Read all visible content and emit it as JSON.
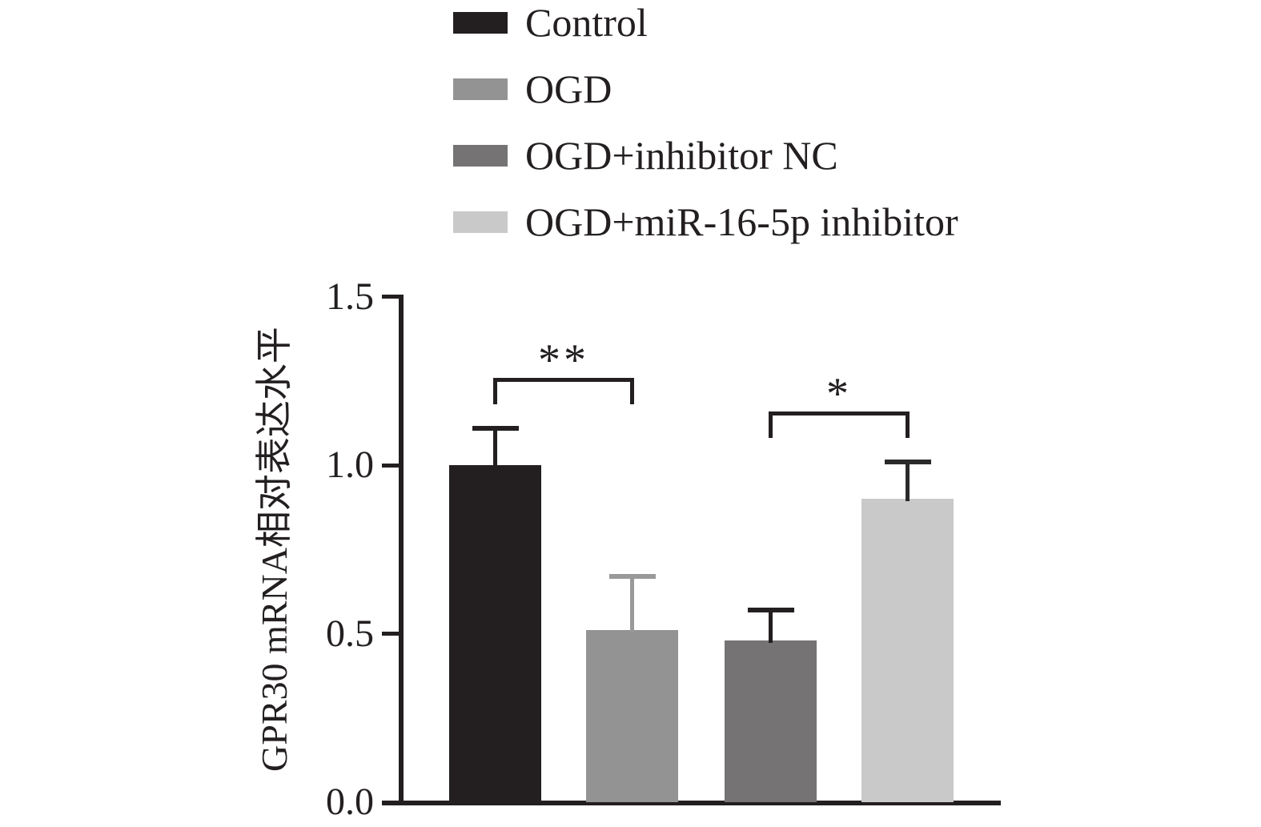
{
  "figure": {
    "background": "#ffffff",
    "text_color": "#231f20",
    "axis_color": "#231f20"
  },
  "legend": {
    "position": "top",
    "items": [
      {
        "label": "Control",
        "color": "#231f20"
      },
      {
        "label": "OGD",
        "color": "#949394"
      },
      {
        "label": "OGD+inhibitor NC",
        "color": "#757374"
      },
      {
        "label": "OGD+miR-16-5p inhibitor",
        "color": "#c9c9c9"
      }
    ]
  },
  "chart_data": {
    "type": "bar",
    "title": "",
    "xlabel": "",
    "ylabel": "GPR30 mRNA相对表达水平",
    "ylim": [
      0,
      1.5
    ],
    "yticks": [
      0.0,
      0.5,
      1.0,
      1.5
    ],
    "ytick_labels": [
      "0.0",
      "0.5",
      "1.0",
      "1.5"
    ],
    "grid": false,
    "legend_position": "top",
    "categories": [
      "Control",
      "OGD",
      "OGD+inhibitor NC",
      "OGD+miR-16-5p inhibitor"
    ],
    "values": [
      1.0,
      0.51,
      0.48,
      0.9
    ],
    "errors": [
      0.11,
      0.16,
      0.09,
      0.11
    ],
    "bar_colors": [
      "#231f20",
      "#949394",
      "#757374",
      "#c9c9c9"
    ],
    "error_colors": [
      "#231f20",
      "#9a999a",
      "#231f20",
      "#2a2a2a"
    ],
    "significance": [
      {
        "label": "**",
        "from": 0,
        "to": 1,
        "y": 1.26
      },
      {
        "label": "*",
        "from": 2,
        "to": 3,
        "y": 1.16
      }
    ]
  }
}
